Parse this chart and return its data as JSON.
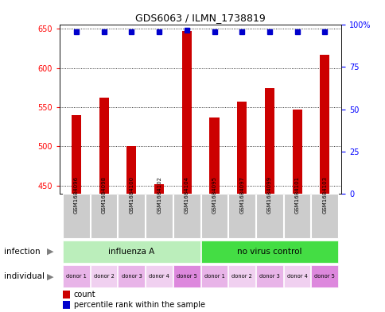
{
  "title": "GDS6063 / ILMN_1738819",
  "samples": [
    "GSM1684096",
    "GSM1684098",
    "GSM1684100",
    "GSM1684102",
    "GSM1684104",
    "GSM1684095",
    "GSM1684097",
    "GSM1684099",
    "GSM1684101",
    "GSM1684103"
  ],
  "counts": [
    540,
    562,
    500,
    452,
    647,
    537,
    557,
    574,
    547,
    617
  ],
  "percentiles": [
    96,
    96,
    96,
    96,
    97,
    96,
    96,
    96,
    96,
    96
  ],
  "ylim_left": [
    440,
    655
  ],
  "ylim_right": [
    0,
    100
  ],
  "yticks_left": [
    450,
    500,
    550,
    600,
    650
  ],
  "yticks_right": [
    0,
    25,
    50,
    75,
    100
  ],
  "bar_color": "#cc0000",
  "dot_color": "#0000cc",
  "infection_groups": [
    {
      "label": "influenza A",
      "start": 0,
      "end": 5,
      "color": "#bbeebb"
    },
    {
      "label": "no virus control",
      "start": 5,
      "end": 10,
      "color": "#44dd44"
    }
  ],
  "individual_labels": [
    "donor 1",
    "donor 2",
    "donor 3",
    "donor 4",
    "donor 5",
    "donor 1",
    "donor 2",
    "donor 3",
    "donor 4",
    "donor 5"
  ],
  "individual_colors": [
    "#e8b4e8",
    "#f0d0f0",
    "#e8b4e8",
    "#f0d0f0",
    "#dd88dd",
    "#e8b4e8",
    "#f0d0f0",
    "#e8b4e8",
    "#f0d0f0",
    "#dd88dd"
  ],
  "infection_row_label": "infection",
  "individual_row_label": "individual",
  "legend_count_label": "count",
  "legend_percentile_label": "percentile rank within the sample",
  "background_color": "#ffffff",
  "sample_box_color": "#cccccc",
  "sample_label_fontsize": 5.5,
  "bar_width": 0.35
}
